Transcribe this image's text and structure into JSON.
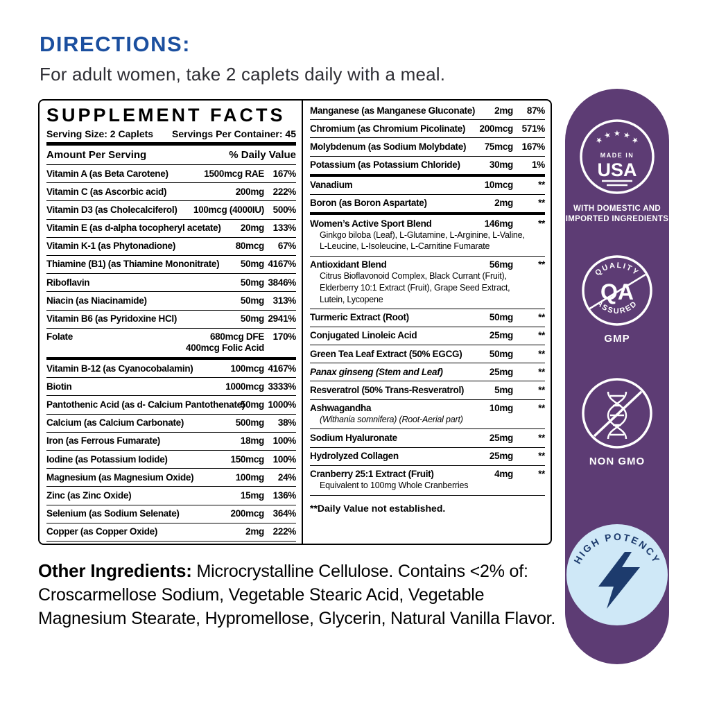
{
  "directions": {
    "title": "DIRECTIONS:",
    "text": "For adult women, take 2 caplets daily with a meal."
  },
  "panel": {
    "title": "SUPPLEMENT FACTS",
    "serving_size": "Serving Size: 2 Caplets",
    "servings_per_container": "Servings Per Container: 45",
    "amount_header": "Amount Per Serving",
    "dv_header": "% Daily Value",
    "left_rows": [
      {
        "name": "Vitamin A (as Beta Carotene)",
        "amount": "1500mcg RAE",
        "dv": "167%"
      },
      {
        "name": "Vitamin C (as Ascorbic acid)",
        "amount": "200mg",
        "dv": "222%"
      },
      {
        "name": "Vitamin D3 (as Cholecalciferol)",
        "amount": "100mcg (4000IU)",
        "dv": "500%"
      },
      {
        "name": "Vitamin E (as d-alpha tocopheryl acetate)",
        "amount": "20mg",
        "dv": "133%"
      },
      {
        "name": "Vitamin K-1 (as Phytonadione)",
        "amount": "80mcg",
        "dv": "67%"
      },
      {
        "name": "Thiamine (B1) (as Thiamine Mononitrate)",
        "amount": "50mg",
        "dv": "4167%"
      },
      {
        "name": "Riboflavin",
        "amount": "50mg",
        "dv": "3846%"
      },
      {
        "name": "Niacin (as Niacinamide)",
        "amount": "50mg",
        "dv": "313%"
      },
      {
        "name": "Vitamin B6 (as Pyridoxine HCl)",
        "amount": "50mg",
        "dv": "2941%"
      },
      {
        "name": "Folate",
        "amount": "680mcg DFE\n400mcg Folic Acid",
        "dv": "170%",
        "thick": true
      },
      {
        "name": "Vitamin B-12 (as Cyanocobalamin)",
        "amount": "100mcg",
        "dv": "4167%"
      },
      {
        "name": "Biotin",
        "amount": "1000mcg",
        "dv": "3333%"
      },
      {
        "name": "Pantothenic Acid (as d- Calcium Pantothenate)",
        "amount": "50mg",
        "dv": "1000%"
      },
      {
        "name": "Calcium (as Calcium Carbonate)",
        "amount": "500mg",
        "dv": "38%"
      },
      {
        "name": "Iron (as Ferrous Fumarate)",
        "amount": "18mg",
        "dv": "100%"
      },
      {
        "name": "Iodine (as Potassium Iodide)",
        "amount": "150mcg",
        "dv": "100%"
      },
      {
        "name": "Magnesium (as Magnesium Oxide)",
        "amount": "100mg",
        "dv": "24%"
      },
      {
        "name": "Zinc (as Zinc Oxide)",
        "amount": "15mg",
        "dv": "136%"
      },
      {
        "name": "Selenium (as Sodium Selenate)",
        "amount": "200mcg",
        "dv": "364%"
      },
      {
        "name": "Copper (as Copper Oxide)",
        "amount": "2mg",
        "dv": "222%",
        "last": true
      }
    ],
    "right_rows": [
      {
        "name": "Manganese (as Manganese Gluconate)",
        "amount": "2mg",
        "dv": "87%"
      },
      {
        "name": "Chromium (as Chromium Picolinate)",
        "amount": "200mcg",
        "dv": "571%"
      },
      {
        "name": "Molybdenum (as Sodium Molybdate)",
        "amount": "75mcg",
        "dv": "167%"
      },
      {
        "name": "Potassium (as Potassium Chloride)",
        "amount": "30mg",
        "dv": "1%",
        "thick": true
      },
      {
        "name": "Vanadium",
        "amount": "10mcg",
        "dv": "**"
      },
      {
        "name": "Boron (as Boron Aspartate)",
        "amount": "2mg",
        "dv": "**",
        "thick": true
      },
      {
        "name": "Women’s Active Sport Blend",
        "amount": "146mg",
        "dv": "**",
        "sub": [
          "Ginkgo biloba (Leaf), L-Glutamine, L-Arginine, L-Valine,",
          "L-Leucine, L-Isoleucine, L-Carnitine Fumarate"
        ],
        "sub_italic": false
      },
      {
        "name": "Antioxidant Blend",
        "amount": "56mg",
        "dv": "**",
        "sub": [
          "Citrus Bioflavonoid Complex, Black Currant (Fruit),",
          "Elderberry 10:1 Extract (Fruit), Grape Seed Extract,",
          "Lutein, Lycopene"
        ]
      },
      {
        "name": "Turmeric Extract (Root)",
        "amount": "50mg",
        "dv": "**"
      },
      {
        "name": "Conjugated Linoleic Acid",
        "amount": "25mg",
        "dv": "**"
      },
      {
        "name": "Green Tea Leaf Extract (50% EGCG)",
        "amount": "50mg",
        "dv": "**"
      },
      {
        "name": "Panax ginseng (Stem and Leaf)",
        "amount": "25mg",
        "dv": "**",
        "name_italic": true
      },
      {
        "name": "Resveratrol (50% Trans-Resveratrol)",
        "amount": "5mg",
        "dv": "**"
      },
      {
        "name": "Ashwagandha",
        "amount": "10mg",
        "dv": "**",
        "sub": [
          "(Withania somnifera) (Root-Aerial part)"
        ],
        "sub_italic": true
      },
      {
        "name": "Sodium Hyaluronate",
        "amount": "25mg",
        "dv": "**"
      },
      {
        "name": "Hydrolyzed Collagen",
        "amount": "25mg",
        "dv": "**"
      },
      {
        "name": "Cranberry 25:1 Extract (Fruit)",
        "amount": "4mg",
        "dv": "**",
        "sub": [
          "Equivalent to 100mg Whole Cranberries"
        ],
        "last": true
      }
    ],
    "footnote": "**Daily Value not established."
  },
  "badges": {
    "usa": {
      "stars": "★ ★ ★ ★ ★",
      "made_in": "MADE IN",
      "usa": "USA"
    },
    "domestic_line1": "WITH DOMESTIC AND",
    "domestic_line2": "IMPORTED INGREDIENTS",
    "qa": {
      "top": "QUALITY",
      "center": "QA",
      "bottom": "ASSURED"
    },
    "gmp_label": "GMP",
    "non_gmo_label": "NON GMO",
    "high_potency": "HIGH POTENCY"
  },
  "other_ingredients": {
    "label": "Other Ingredients:",
    "text": " Microcrystalline Cellulose. Contains <2% of: Croscarmellose Sodium, Vegetable Stearic Acid, Vegetable Magnesium Stearate, Hypromellose, Glycerin, Natural Vanilla Flavor."
  },
  "colors": {
    "heading_blue": "#1b4f9f",
    "banner_purple": "#5d3c74",
    "badge_light_blue": "#cfe8f7",
    "badge_navy": "#1d3b6d"
  }
}
